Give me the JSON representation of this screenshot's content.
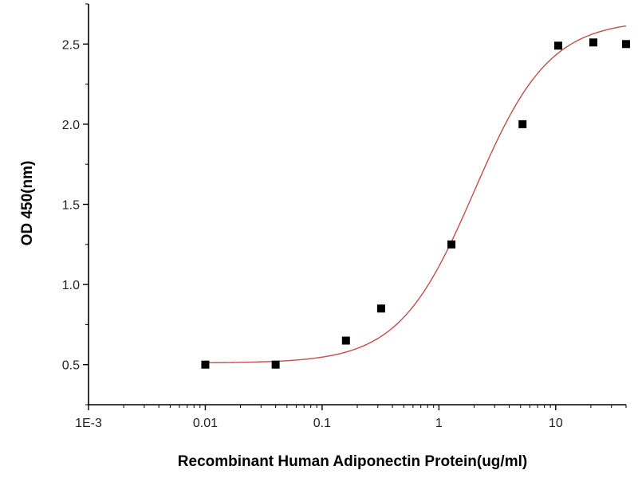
{
  "chart_data": {
    "type": "scatter",
    "title": "",
    "xlabel": "Recombinant Human Adiponectin Protein(ug/ml)",
    "ylabel": "OD 450(nm)",
    "x_scale": "log",
    "xlim": [
      0.001,
      40
    ],
    "ylim": [
      0.25,
      2.75
    ],
    "x_ticks": [
      {
        "value": 0.001,
        "label": "1E-3"
      },
      {
        "value": 0.01,
        "label": "0.01"
      },
      {
        "value": 0.1,
        "label": "0.1"
      },
      {
        "value": 1,
        "label": "1"
      },
      {
        "value": 10,
        "label": "10"
      }
    ],
    "y_ticks": [
      {
        "value": 0.5,
        "label": "0.5"
      },
      {
        "value": 1.0,
        "label": "1.0"
      },
      {
        "value": 1.5,
        "label": "1.5"
      },
      {
        "value": 2.0,
        "label": "2.0"
      },
      {
        "value": 2.5,
        "label": "2.5"
      }
    ],
    "grid": false,
    "legend": "none",
    "series": [
      {
        "marker": "square",
        "color": "#000000",
        "points": [
          {
            "x": 0.01,
            "y": 0.5
          },
          {
            "x": 0.04,
            "y": 0.5
          },
          {
            "x": 0.16,
            "y": 0.65
          },
          {
            "x": 0.32,
            "y": 0.85
          },
          {
            "x": 1.28,
            "y": 1.25
          },
          {
            "x": 5.2,
            "y": 2.0
          },
          {
            "x": 10.5,
            "y": 2.49
          },
          {
            "x": 21,
            "y": 2.51
          },
          {
            "x": 40,
            "y": 2.5
          }
        ]
      }
    ],
    "fit_curve": {
      "kind": "4PL",
      "color": "#c0504d",
      "bottom": 0.51,
      "top": 2.65,
      "ec50": 2.0,
      "hill": 1.35,
      "x_range": [
        0.01,
        40
      ]
    }
  }
}
